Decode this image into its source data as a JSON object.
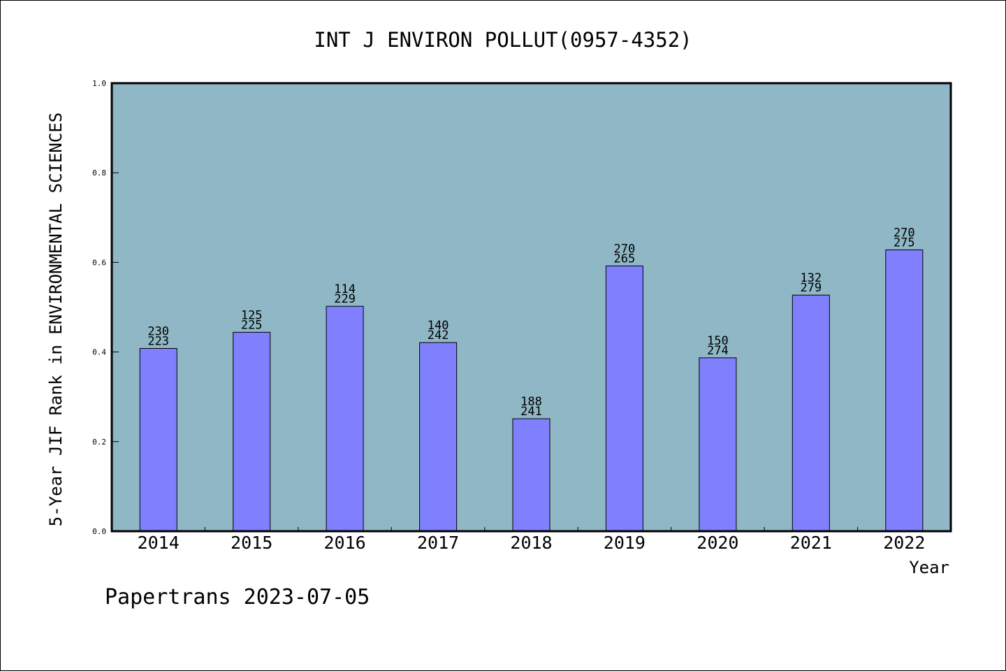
{
  "footer": {
    "watermark": "Papertrans 2023-07-05"
  },
  "colors": {
    "plot_background": "#8fb7c5",
    "bar_fill": "#8080ff",
    "bar_stroke": "#000000",
    "text": "#000000"
  },
  "chart_data": {
    "type": "bar",
    "title": "INT J ENVIRON POLLUT(0957-4352)",
    "xlabel": "Year",
    "ylabel": "5-Year JIF Rank in ENVIRONMENTAL SCIENCES",
    "ylim": [
      0,
      1.0
    ],
    "yticks": [
      "0.0",
      "0.2",
      "0.4",
      "0.6",
      "0.8",
      "1.0"
    ],
    "grid": false,
    "categories": [
      "2014",
      "2015",
      "2016",
      "2017",
      "2018",
      "2019",
      "2020",
      "2021",
      "2022"
    ],
    "values": [
      0.408,
      0.444,
      0.502,
      0.421,
      0.251,
      0.592,
      0.387,
      0.527,
      0.628
    ],
    "labels_top": [
      "230",
      "125",
      "114",
      "140",
      "188",
      "270",
      "150",
      "132",
      "270"
    ],
    "labels_bottom": [
      "223",
      "225",
      "229",
      "242",
      "241",
      "265",
      "274",
      "279",
      "275"
    ]
  }
}
